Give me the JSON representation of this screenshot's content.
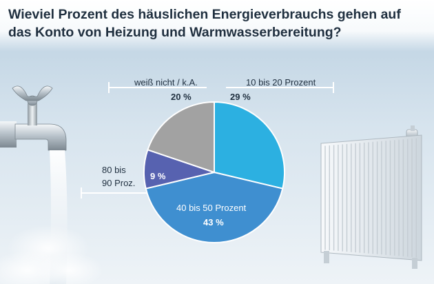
{
  "title": "Wieviel Prozent des häuslichen Energieverbrauchs gehen auf das Konto von Heizung und Warmwasserbereitung?",
  "chart_data": {
    "type": "pie",
    "title": "Wieviel Prozent des häuslichen Energieverbrauchs gehen auf das Konto von Heizung und Warmwasserbereitung?",
    "unit": "%",
    "slices": [
      {
        "label": "10 bis 20 Prozent",
        "value": 29,
        "display": "29 %",
        "color": "#2cb0e1"
      },
      {
        "label": "40 bis 50 Prozent",
        "value": 43,
        "display": "43 %",
        "color": "#3f8fd0"
      },
      {
        "label_lines": [
          "80 bis",
          "90 Proz."
        ],
        "value": 9,
        "display": "9 %",
        "color": "#5762b0"
      },
      {
        "label": "weiß nicht / k.A.",
        "value": 20,
        "display": "20 %",
        "color": "#a2a2a2"
      }
    ]
  },
  "illustrations": {
    "left": "water-tap-icon",
    "right": "radiator-icon"
  }
}
